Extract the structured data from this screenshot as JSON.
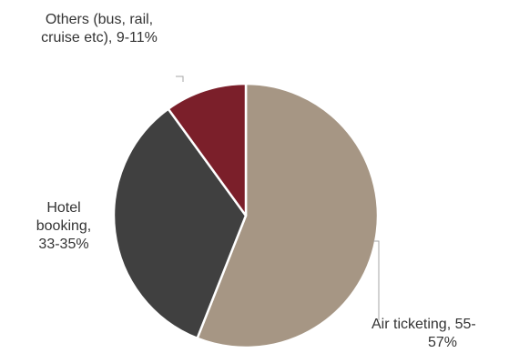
{
  "chart_data": {
    "type": "pie",
    "slices": [
      {
        "label_lines": [
          "Air ticketing, 55-",
          "57%"
        ],
        "value": 56,
        "color": "#a69684"
      },
      {
        "label_lines": [
          "Hotel",
          "booking,",
          "33-35%"
        ],
        "value": 34,
        "color": "#404040"
      },
      {
        "label_lines": [
          "Others (bus, rail,",
          "cruise etc), 9-11%"
        ],
        "value": 10,
        "color": "#7b1f2a"
      }
    ],
    "start_angle_deg": 0,
    "direction": "clockwise",
    "slice_border_color": "#ffffff",
    "leader_line_color": "#a6a6a6"
  }
}
